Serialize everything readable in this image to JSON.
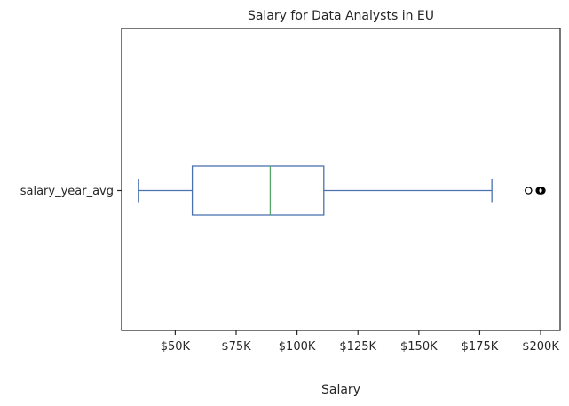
{
  "chart_data": {
    "type": "box",
    "title": "Salary for Data Analysts in EU",
    "xlabel": "Salary",
    "ylabel": "",
    "category": "salary_year_avg",
    "orientation": "horizontal",
    "xlim": [
      28000,
      208000
    ],
    "xticks": [
      {
        "value": 50000,
        "label": "$50K"
      },
      {
        "value": 75000,
        "label": "$75K"
      },
      {
        "value": 100000,
        "label": "$100K"
      },
      {
        "value": 125000,
        "label": "$125K"
      },
      {
        "value": 150000,
        "label": "$150K"
      },
      {
        "value": 175000,
        "label": "$175K"
      },
      {
        "value": 200000,
        "label": "$200K"
      }
    ],
    "stats": {
      "whisker_low": 35000,
      "q1": 57000,
      "median": 89000,
      "q3": 111000,
      "whisker_high": 180000
    },
    "outliers": [
      195000,
      200000,
      200000,
      200000,
      200000
    ],
    "grid": false,
    "colors": {
      "box": "#4c72b0",
      "median": "#55a868",
      "outlier": "#000000",
      "axes": "#262626"
    }
  }
}
